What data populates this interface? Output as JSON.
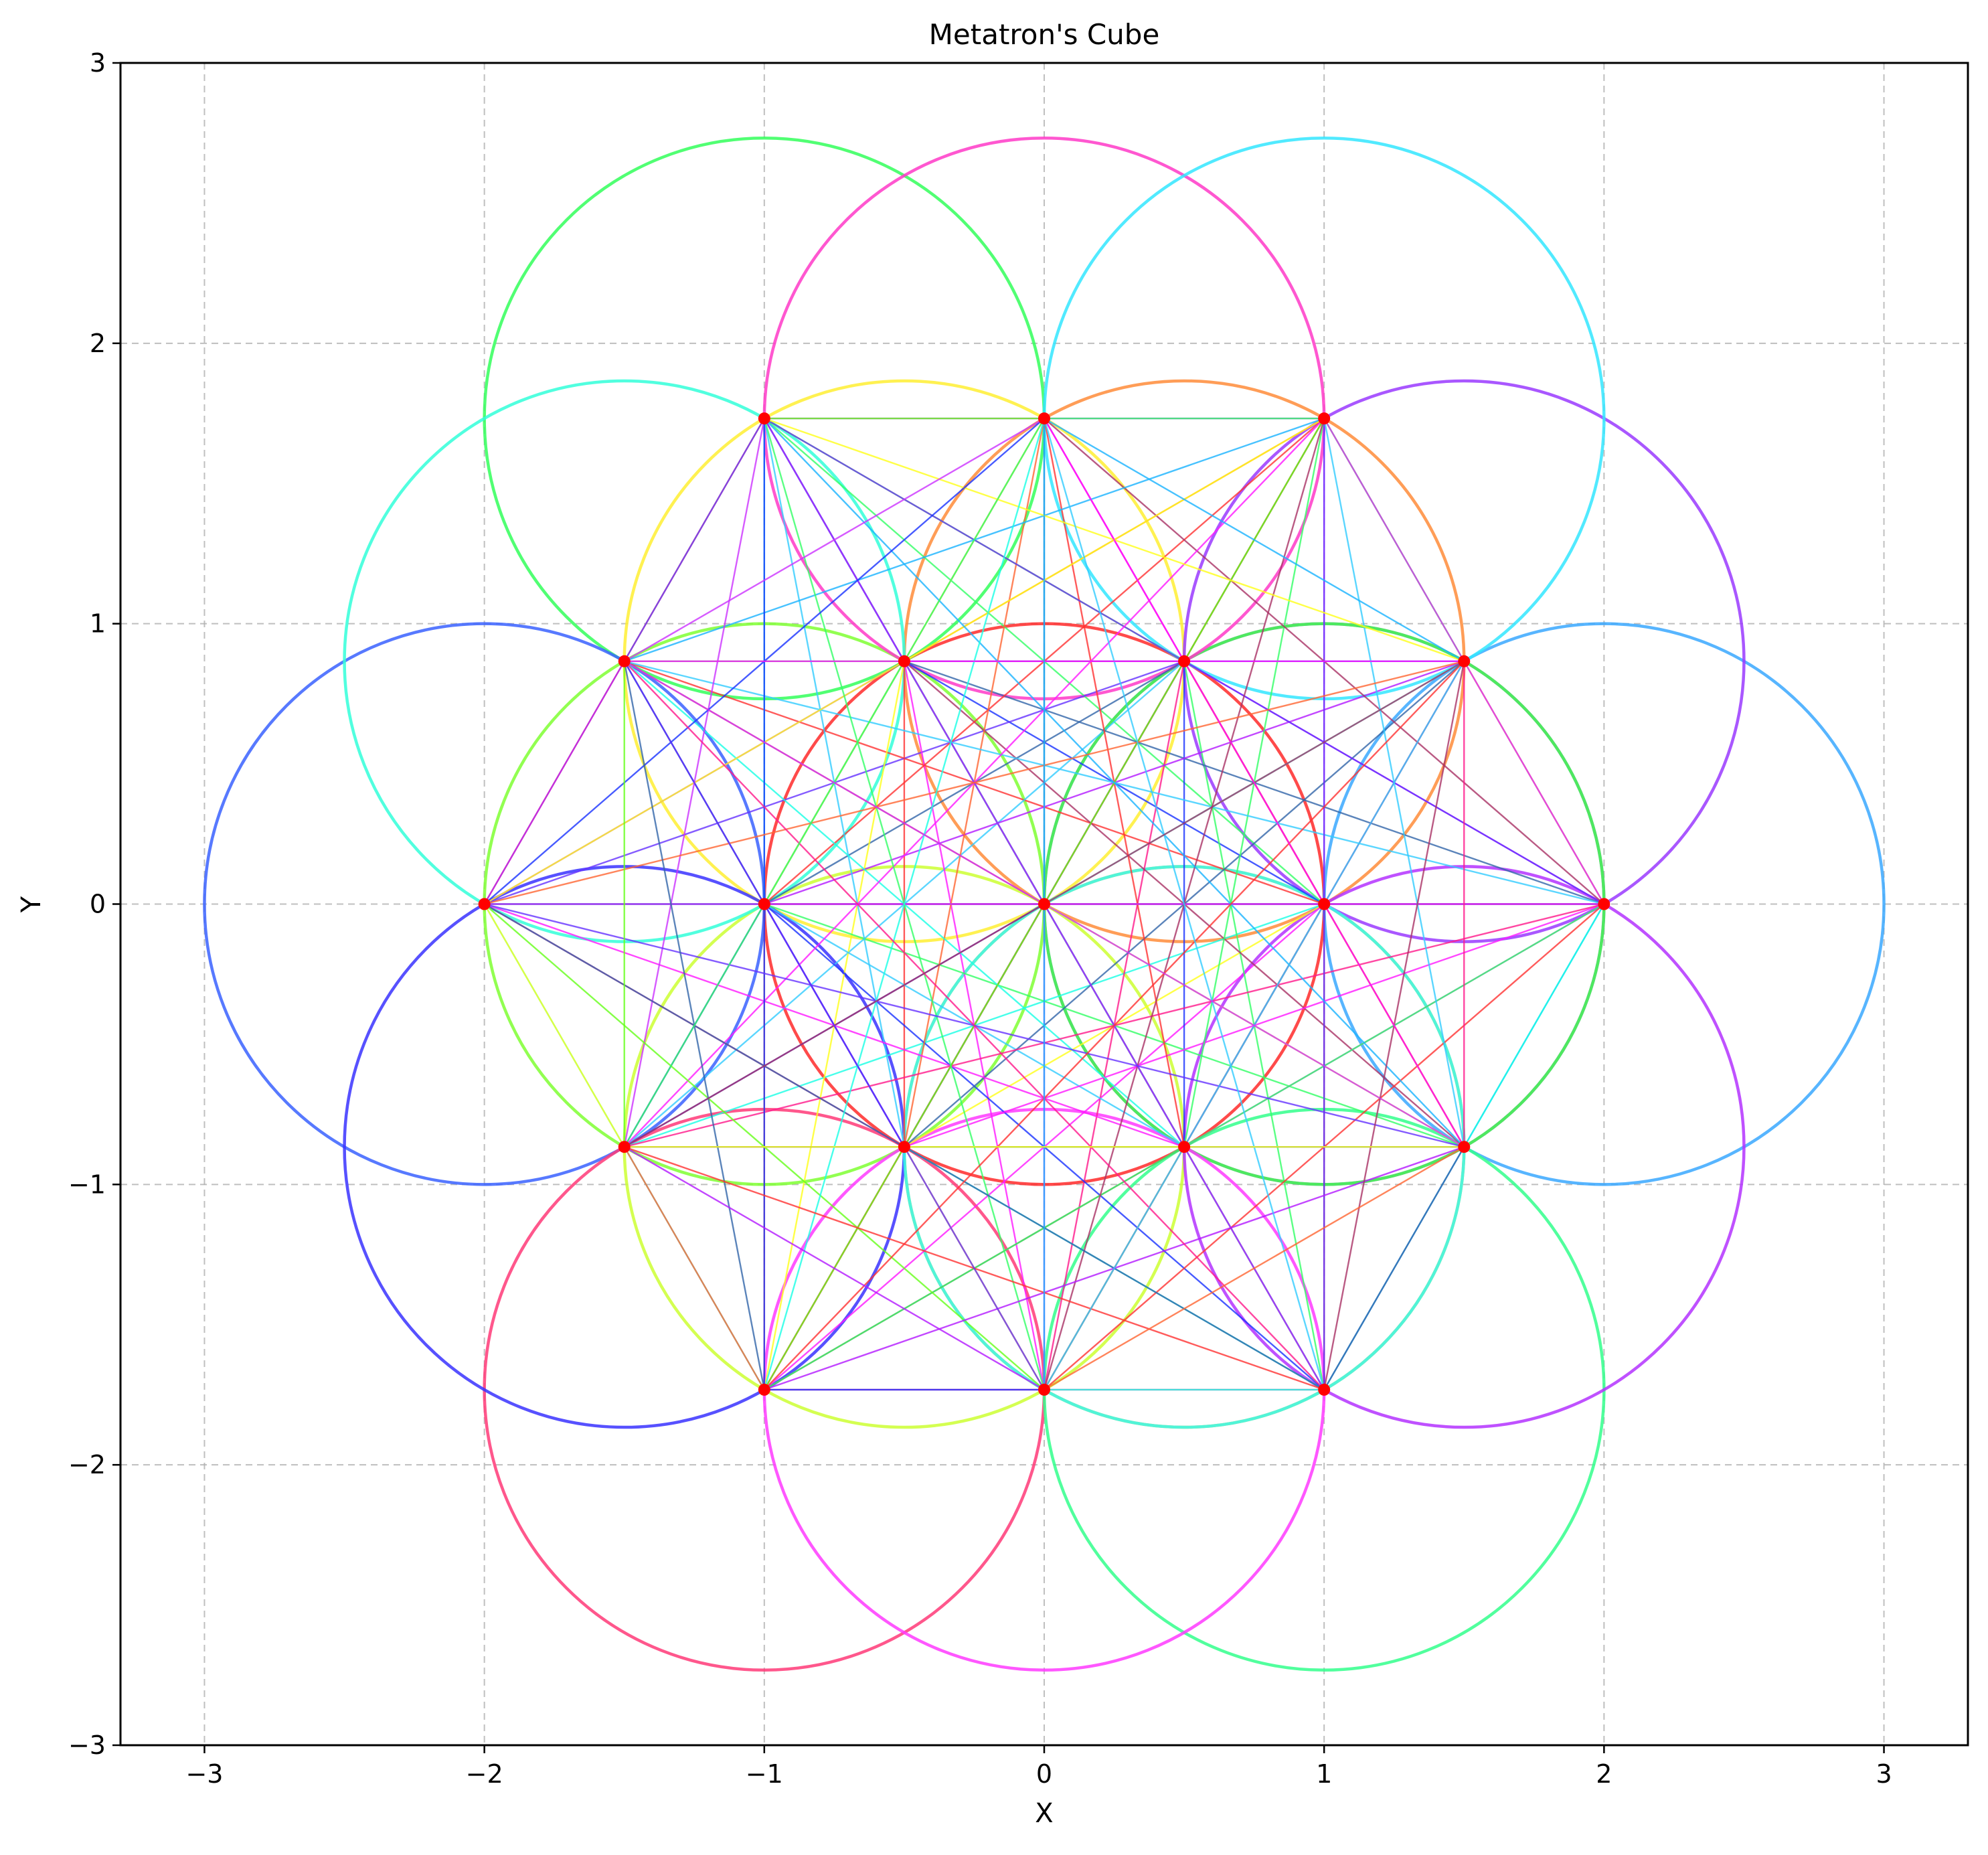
{
  "chart_data": {
    "type": "scatter",
    "title": "Metatron's Cube",
    "xlabel": "X",
    "ylabel": "Y",
    "xlim": [
      -3.3,
      3.3
    ],
    "ylim": [
      -3.0,
      3.0
    ],
    "xticks": [
      -3,
      -2,
      -1,
      0,
      1,
      2,
      3
    ],
    "yticks": [
      -3,
      -2,
      -1,
      0,
      1,
      2,
      3
    ],
    "grid": true,
    "legend": "none",
    "circle_radius": 1.0,
    "vertex_color": "#ff0000",
    "vertices": [
      [
        0.0,
        0.0
      ],
      [
        1.0,
        0.0
      ],
      [
        0.5,
        0.866
      ],
      [
        -0.5,
        0.866
      ],
      [
        -1.0,
        0.0
      ],
      [
        -0.5,
        -0.866
      ],
      [
        0.5,
        -0.866
      ],
      [
        2.0,
        0.0
      ],
      [
        1.0,
        1.732
      ],
      [
        -1.0,
        1.732
      ],
      [
        -2.0,
        0.0
      ],
      [
        -1.0,
        -1.732
      ],
      [
        1.0,
        -1.732
      ],
      [
        1.5,
        0.866
      ],
      [
        0.0,
        1.732
      ],
      [
        -1.5,
        0.866
      ],
      [
        -1.5,
        -0.866
      ],
      [
        0.0,
        -1.732
      ],
      [
        1.5,
        -0.866
      ]
    ],
    "circle_colors": [
      "#ff2a2a",
      "#b44cff",
      "#ff8c3a",
      "#ffee33",
      "#7fff33",
      "#ccff33",
      "#ffa533",
      "#3aa8ff",
      "#9a3aff",
      "#33ff5a",
      "#3a62ff",
      "#ff3a78",
      "#33ff8c",
      "#3aff44",
      "#ff3ac8",
      "#33ffd9",
      "#3a33ff",
      "#ff3aff",
      "#b433ff"
    ],
    "circle_centers": [
      [
        0.0,
        0.0
      ],
      [
        1.0,
        0.0
      ],
      [
        0.5,
        0.866
      ],
      [
        -0.5,
        0.866
      ],
      [
        -1.0,
        0.0
      ],
      [
        -0.5,
        -0.866
      ],
      [
        0.5,
        -0.866
      ],
      [
        2.0,
        0.0
      ],
      [
        1.5,
        0.866
      ],
      [
        -1.0,
        1.732
      ],
      [
        -2.0,
        0.0
      ],
      [
        -1.0,
        -1.732
      ],
      [
        1.0,
        -1.732
      ],
      [
        1.0,
        0.0
      ],
      [
        0.0,
        1.732
      ],
      [
        -1.5,
        0.866
      ],
      [
        -1.5,
        -0.866
      ],
      [
        0.0,
        -1.732
      ],
      [
        1.5,
        -0.866
      ]
    ],
    "extra_circles": [
      {
        "center": [
          1.0,
          1.732
        ],
        "color": "#33e6ff"
      },
      {
        "center": [
          0.5,
          -0.866
        ],
        "color": "#33ffee"
      }
    ],
    "line_palette": [
      "#1a33ff",
      "#ff1a8c",
      "#33ff66",
      "#b41aff",
      "#ff3333",
      "#1ab4ff",
      "#ffff1a",
      "#1affe6",
      "#ff1aff",
      "#66ff1a",
      "#3366aa",
      "#aa3366",
      "#6633ff",
      "#ff6633",
      "#33ccff",
      "#cc33ff"
    ]
  }
}
